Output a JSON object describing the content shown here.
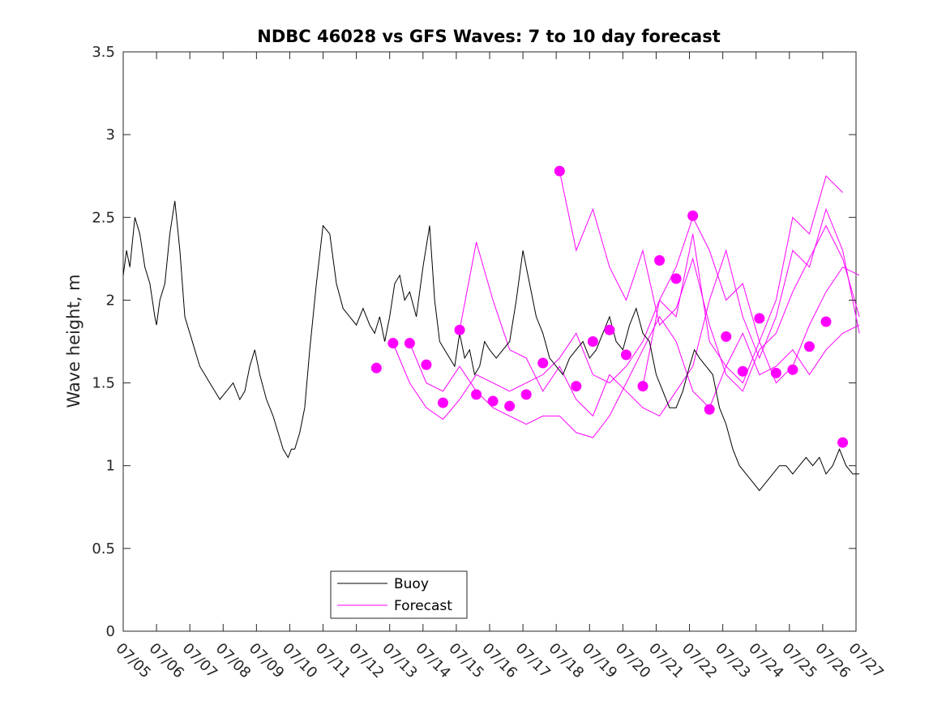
{
  "chart_data": {
    "type": "line",
    "title": "NDBC 46028 vs GFS Waves: 7 to 10 day forecast",
    "xlabel": "",
    "ylabel": "Wave height, m",
    "ylim": [
      0,
      3.5
    ],
    "xlim": [
      "07/05",
      "07/27"
    ],
    "x_tick_labels": [
      "07/05",
      "07/06",
      "07/07",
      "07/08",
      "07/09",
      "07/10",
      "07/11",
      "07/12",
      "07/13",
      "07/14",
      "07/15",
      "07/16",
      "07/17",
      "07/18",
      "07/19",
      "07/20",
      "07/21",
      "07/22",
      "07/23",
      "07/24",
      "07/25",
      "07/26",
      "07/27"
    ],
    "y_tick_labels": [
      "0",
      "0.5",
      "1",
      "1.5",
      "2",
      "2.5",
      "3",
      "3.5"
    ],
    "y_tick_values": [
      0,
      0.5,
      1,
      1.5,
      2,
      2.5,
      3,
      3.5
    ],
    "grid": false,
    "legend": {
      "placement": "bottom-center",
      "entries": [
        "Buoy",
        "Forecast"
      ]
    },
    "colors": {
      "buoy": "#000000",
      "forecast": "#ff00ff"
    },
    "series": [
      {
        "name": "Buoy",
        "x_days": [
          0,
          0.1,
          0.2,
          0.35,
          0.5,
          0.65,
          0.8,
          0.95,
          1.0,
          1.1,
          1.25,
          1.4,
          1.55,
          1.7,
          1.85,
          2.0,
          2.15,
          2.3,
          2.45,
          2.6,
          2.75,
          2.9,
          3.1,
          3.3,
          3.5,
          3.65,
          3.8,
          3.95,
          4.1,
          4.3,
          4.5,
          4.65,
          4.8,
          4.95,
          5.05,
          5.15,
          5.3,
          5.45,
          5.6,
          5.8,
          6.0,
          6.2,
          6.4,
          6.6,
          6.8,
          7.0,
          7.2,
          7.4,
          7.55,
          7.7,
          7.85,
          8.0,
          8.15,
          8.3,
          8.45,
          8.6,
          8.8,
          9.0,
          9.2,
          9.35,
          9.5,
          9.65,
          9.8,
          9.95,
          10.1,
          10.25,
          10.4,
          10.55,
          10.7,
          10.85,
          11.0,
          11.2,
          11.4,
          11.6,
          11.8,
          12.0,
          12.2,
          12.4,
          12.6,
          12.8,
          13.0,
          13.2,
          13.4,
          13.6,
          13.8,
          14.0,
          14.2,
          14.4,
          14.6,
          14.8,
          15.0,
          15.2,
          15.4,
          15.6,
          15.8,
          16.0,
          16.2,
          16.4,
          16.6,
          16.8,
          17.0,
          17.15,
          17.3,
          17.5,
          17.7,
          17.9,
          18.1,
          18.3,
          18.5,
          18.7,
          18.9,
          19.1,
          19.3,
          19.5,
          19.7,
          19.9,
          20.1,
          20.3,
          20.5,
          20.7,
          20.9,
          21.1,
          21.3,
          21.5,
          21.7,
          21.9,
          22.1
        ],
        "values": [
          2.15,
          2.3,
          2.2,
          2.5,
          2.4,
          2.2,
          2.1,
          1.9,
          1.85,
          2.0,
          2.1,
          2.4,
          2.6,
          2.3,
          1.9,
          1.8,
          1.7,
          1.6,
          1.55,
          1.5,
          1.45,
          1.4,
          1.45,
          1.5,
          1.4,
          1.45,
          1.6,
          1.7,
          1.55,
          1.4,
          1.3,
          1.2,
          1.1,
          1.05,
          1.1,
          1.1,
          1.2,
          1.35,
          1.7,
          2.1,
          2.45,
          2.4,
          2.1,
          1.95,
          1.9,
          1.85,
          1.95,
          1.85,
          1.8,
          1.9,
          1.75,
          1.9,
          2.1,
          2.15,
          2.0,
          2.05,
          1.9,
          2.2,
          2.45,
          2.0,
          1.75,
          1.7,
          1.65,
          1.6,
          1.8,
          1.65,
          1.7,
          1.55,
          1.6,
          1.75,
          1.7,
          1.65,
          1.7,
          1.75,
          2.0,
          2.3,
          2.1,
          1.9,
          1.8,
          1.65,
          1.6,
          1.55,
          1.65,
          1.7,
          1.75,
          1.65,
          1.7,
          1.8,
          1.9,
          1.75,
          1.7,
          1.85,
          1.95,
          1.8,
          1.75,
          1.55,
          1.45,
          1.35,
          1.35,
          1.45,
          1.6,
          1.7,
          1.65,
          1.6,
          1.55,
          1.35,
          1.25,
          1.1,
          1.0,
          0.95,
          0.9,
          0.85,
          0.9,
          0.95,
          1.0,
          1.0,
          0.95,
          1.0,
          1.05,
          1.0,
          1.05,
          0.95,
          1.0,
          1.1,
          1.0,
          0.95,
          0.95
        ],
        "comment_units": "days after 07/05 00:00; wave height in m"
      }
    ],
    "forecast_markers": {
      "x_days": [
        7.6,
        8.1,
        8.6,
        9.1,
        9.6,
        10.1,
        10.6,
        11.1,
        11.6,
        12.1,
        12.6,
        13.1,
        13.6,
        14.1,
        14.6,
        15.1,
        15.6,
        16.1,
        16.6,
        17.1,
        17.6,
        18.1,
        18.6,
        19.1,
        19.6,
        20.1,
        20.6,
        21.1,
        21.6
      ],
      "values": [
        1.59,
        1.74,
        1.74,
        1.61,
        1.38,
        1.82,
        1.43,
        1.39,
        1.36,
        1.43,
        1.62,
        2.78,
        1.48,
        1.75,
        1.82,
        1.67,
        1.48,
        2.24,
        2.13,
        2.51,
        1.34,
        1.78,
        1.57,
        1.89,
        1.56,
        1.58,
        1.72,
        1.87,
        1.14
      ]
    },
    "forecast_lines": [
      {
        "x_days": [
          8.1,
          8.6,
          9.1,
          9.6,
          10.1,
          10.6,
          11.1,
          11.6,
          12.1,
          12.6,
          13.1,
          13.6,
          14.1,
          14.6,
          15.1,
          15.6,
          16.1,
          16.6,
          17.1,
          17.6,
          18.1,
          18.6,
          19.1,
          19.6,
          20.1,
          20.6,
          21.1,
          21.6,
          22.1
        ],
        "values": [
          1.74,
          1.5,
          1.35,
          1.28,
          1.4,
          1.55,
          1.5,
          1.45,
          1.5,
          1.55,
          1.65,
          1.8,
          1.55,
          1.5,
          1.6,
          1.75,
          2.0,
          2.2,
          2.5,
          2.3,
          2.0,
          2.1,
          1.75,
          1.5,
          1.6,
          1.85,
          2.05,
          2.2,
          2.15
        ]
      },
      {
        "x_days": [
          8.6,
          9.1,
          9.6,
          10.1,
          10.6,
          11.1,
          11.6,
          12.1,
          12.6,
          13.1,
          13.6,
          14.1,
          14.6,
          15.1,
          15.6,
          16.1,
          16.6,
          17.1,
          17.6,
          18.1,
          18.6,
          19.1,
          19.6,
          20.1,
          20.6,
          21.1,
          21.6,
          22.1
        ],
        "values": [
          1.74,
          1.5,
          1.45,
          1.6,
          1.45,
          1.35,
          1.3,
          1.25,
          1.3,
          1.3,
          1.2,
          1.17,
          1.3,
          1.5,
          1.7,
          1.9,
          1.75,
          1.45,
          1.35,
          1.6,
          1.8,
          1.55,
          1.6,
          1.7,
          1.55,
          1.7,
          1.8,
          1.85
        ]
      },
      {
        "x_days": [
          10.1,
          10.6,
          11.1,
          11.6,
          12.1,
          12.6,
          13.1,
          13.6,
          14.1,
          14.6,
          15.1,
          15.6,
          16.1,
          16.6,
          17.1,
          17.6,
          18.1,
          18.6,
          19.1,
          19.6,
          20.1,
          20.6,
          21.1,
          21.6,
          22.1
        ],
        "values": [
          1.82,
          2.35,
          2.0,
          1.7,
          1.65,
          1.45,
          1.6,
          1.4,
          1.3,
          1.55,
          1.45,
          1.35,
          1.3,
          1.45,
          1.6,
          2.0,
          2.3,
          1.9,
          1.65,
          1.9,
          2.3,
          2.2,
          2.55,
          2.3,
          1.8
        ]
      },
      {
        "x_days": [
          13.1,
          13.6,
          14.1,
          14.6,
          15.1,
          15.6,
          16.1,
          16.6,
          17.1,
          17.6,
          18.1,
          18.6,
          19.1,
          19.6,
          20.1,
          20.6,
          21.1,
          21.6,
          22.1
        ],
        "values": [
          2.78,
          2.3,
          2.55,
          2.2,
          2.0,
          2.3,
          1.85,
          1.95,
          2.25,
          1.85,
          1.55,
          1.45,
          1.7,
          1.8,
          2.05,
          2.25,
          2.45,
          2.25,
          1.9
        ]
      },
      {
        "x_days": [
          15.6,
          16.1,
          16.6,
          17.1,
          17.6,
          18.1,
          18.6,
          19.1,
          19.6,
          20.1,
          20.6,
          21.1,
          21.6
        ],
        "values": [
          1.48,
          2.0,
          1.9,
          2.4,
          1.75,
          1.6,
          1.5,
          1.75,
          2.0,
          2.5,
          2.4,
          2.75,
          2.65
        ]
      }
    ]
  }
}
